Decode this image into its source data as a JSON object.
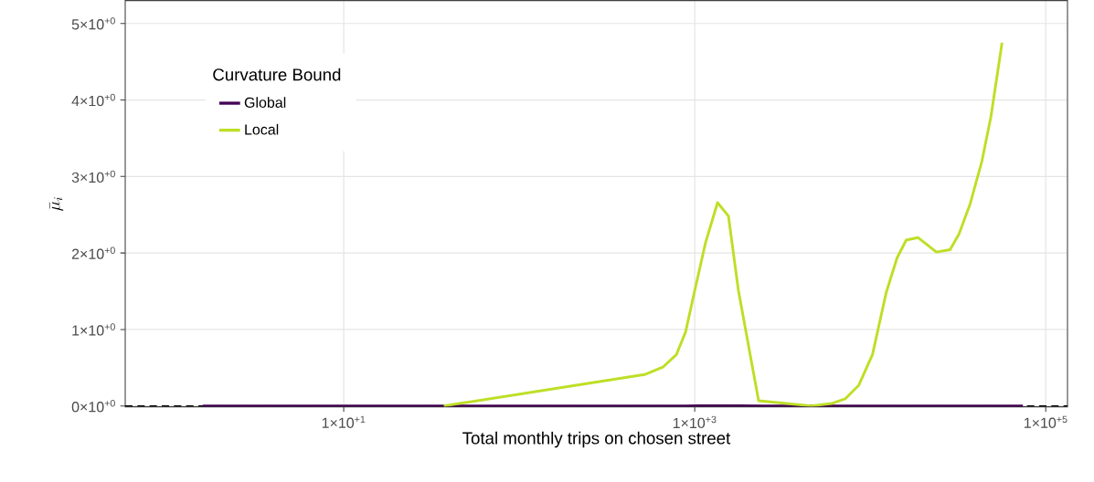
{
  "chart_data": {
    "type": "line",
    "xlabel": "Total monthly trips on chosen street",
    "ylabel": "\\bar{\\mu}_i",
    "legend_title": "Curvature Bound",
    "legend": "top left",
    "grid": true,
    "log": "x",
    "xlim": [
      0.569,
      133000
    ],
    "ylim": [
      -0.0105,
      5.3
    ],
    "xticks": [
      {
        "value": 10,
        "label": "1×10$^{+1}$"
      },
      {
        "value": 1000,
        "label": "1×10$^{+3}$"
      },
      {
        "value": 100000,
        "label": "1×10$^{+5}$"
      }
    ],
    "yticks": [
      {
        "value": 0,
        "label": "0×10$^{+0}$"
      },
      {
        "value": 1,
        "label": "1×10$^{+0}$"
      },
      {
        "value": 2,
        "label": "2×10$^{+0}$"
      },
      {
        "value": 3,
        "label": "3×10$^{+0}$"
      },
      {
        "value": 4,
        "label": "4×10$^{+0}$"
      },
      {
        "value": 5,
        "label": "5×10$^{+0}$"
      }
    ],
    "ref_lines": [
      {
        "axis": "y",
        "value": 0,
        "color": "#000000",
        "line_style": "dashed"
      }
    ],
    "series": [
      {
        "name": "Global",
        "color": "#440154",
        "x": [
          1.57,
          10,
          35,
          488,
          887,
          1432,
          1820,
          2455,
          4732,
          74130
        ],
        "values": [
          0,
          0.0003,
          0.0005,
          0.0007,
          0.001,
          0.003,
          0.0025,
          0.0002,
          0.0001,
          0.0001
        ]
      },
      {
        "name": "Local",
        "color": "#bddf26",
        "x": [
          37.2,
          518,
          658,
          787,
          887,
          1000,
          1153,
          1349,
          1556,
          1774,
          2312,
          4624,
          6012,
          7194,
          8610,
          10300,
          12330,
          14220,
          16030,
          18750,
          23820,
          28510,
          32060,
          37070,
          43250,
          48750,
          56360
        ],
        "values": [
          0.0007,
          0.411,
          0.507,
          0.673,
          0.968,
          1.509,
          2.137,
          2.658,
          2.484,
          1.509,
          0.068,
          0.001,
          0.032,
          0.093,
          0.272,
          0.673,
          1.482,
          1.936,
          2.169,
          2.201,
          2.012,
          2.043,
          2.25,
          2.641,
          3.197,
          3.786,
          4.75
        ]
      }
    ]
  }
}
